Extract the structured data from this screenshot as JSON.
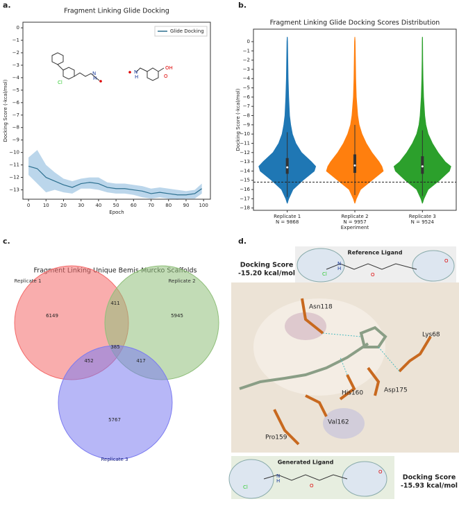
{
  "chart_data": [
    {
      "type": "line",
      "panel": "a.",
      "title": "Fragment Linking Glide Docking",
      "xlabel": "Epoch",
      "ylabel": "Docking Score (-kcal/mol)",
      "x": [
        0,
        5,
        10,
        15,
        20,
        25,
        30,
        35,
        40,
        45,
        50,
        55,
        60,
        65,
        70,
        75,
        80,
        85,
        90,
        95,
        99
      ],
      "series": [
        {
          "name": "Glide Docking",
          "color": "#2c6f8f",
          "band_color": "#9ec5e3",
          "values": [
            -11.1,
            -11.3,
            -12.0,
            -12.3,
            -12.6,
            -12.8,
            -12.5,
            -12.4,
            -12.5,
            -12.8,
            -12.9,
            -12.9,
            -13.0,
            -13.1,
            -13.3,
            -13.2,
            -13.3,
            -13.4,
            -13.4,
            -13.3,
            -12.9
          ],
          "lower": [
            -11.8,
            -12.5,
            -13.2,
            -13.0,
            -13.2,
            -13.3,
            -12.9,
            -12.9,
            -13.0,
            -13.2,
            -13.3,
            -13.3,
            -13.4,
            -13.6,
            -13.7,
            -13.6,
            -13.7,
            -13.8,
            -13.7,
            -13.7,
            -13.3
          ],
          "upper": [
            -10.4,
            -9.8,
            -11.0,
            -11.6,
            -12.1,
            -12.3,
            -12.1,
            -12.0,
            -12.0,
            -12.4,
            -12.5,
            -12.5,
            -12.6,
            -12.7,
            -12.9,
            -12.8,
            -12.9,
            -13.0,
            -13.1,
            -13.0,
            -12.5
          ]
        }
      ],
      "xlim": [
        -3.2,
        103.9
      ],
      "xticks": [
        0,
        10,
        20,
        30,
        40,
        50,
        60,
        70,
        80,
        90,
        100
      ],
      "ylim": [
        -13.75,
        0.45
      ],
      "yticks": [
        0,
        {
          "value": -1,
          "label": "−1"
        },
        {
          "value": -2,
          "label": "−2"
        },
        {
          "value": -3,
          "label": "−3"
        },
        {
          "value": -4,
          "label": "−4"
        },
        {
          "value": -5,
          "label": "−5"
        },
        {
          "value": -6,
          "label": "−6"
        },
        {
          "value": -7,
          "label": "−7"
        },
        {
          "value": -8,
          "label": "−8"
        },
        {
          "value": -9,
          "label": "−9"
        },
        {
          "value": -10,
          "label": "−10"
        },
        {
          "value": -11,
          "label": "−11"
        },
        {
          "value": -12,
          "label": "−12"
        },
        {
          "value": -13,
          "label": "−13"
        }
      ],
      "legend": "upper right",
      "molecule_labels": [
        "Cl",
        "N",
        "H",
        "N",
        "H",
        "O",
        "OH"
      ]
    },
    {
      "type": "violin",
      "panel": "b.",
      "title": "Fragment Linking Glide Docking Scores Distribution",
      "xlabel": "Experiment",
      "ylabel": "Docking Score (-kcal/mol)",
      "categories": [
        "Replicate 1",
        "Replicate 2",
        "Replicate 3"
      ],
      "n_labels": [
        "N = 9868",
        "N = 9957",
        "N = 9524"
      ],
      "kde_y": [
        -17.5,
        -17,
        -16,
        -15,
        -14,
        -13.5,
        -13,
        -12,
        -11,
        -10,
        -9,
        -8,
        -6,
        -4,
        -2,
        0,
        0.5
      ],
      "series": [
        {
          "color": "#1f77b4",
          "density": [
            0,
            0.05,
            0.2,
            0.55,
            0.95,
            1.0,
            0.85,
            0.5,
            0.3,
            0.18,
            0.12,
            0.08,
            0.05,
            0.03,
            0.02,
            0.01,
            0
          ],
          "min": -16.8,
          "q1": -14.3,
          "median": -13.6,
          "q3": -12.6,
          "max": -9.8
        },
        {
          "color": "#ff7f0e",
          "density": [
            0,
            0.05,
            0.2,
            0.6,
            1.0,
            0.95,
            0.85,
            0.6,
            0.4,
            0.25,
            0.15,
            0.1,
            0.05,
            0.03,
            0.02,
            0.01,
            0
          ],
          "min": -16.6,
          "q1": -14.2,
          "median": -13.4,
          "q3": -12.2,
          "max": -9.0
        },
        {
          "color": "#2ca02c",
          "density": [
            0,
            0.05,
            0.2,
            0.6,
            0.95,
            1.0,
            0.8,
            0.55,
            0.35,
            0.2,
            0.12,
            0.08,
            0.04,
            0.02,
            0.01,
            0.005,
            0
          ],
          "min": -16.7,
          "q1": -14.3,
          "median": -13.5,
          "q3": -12.4,
          "max": -9.6
        }
      ],
      "reference_line": -15.2,
      "ylim": [
        -18.25,
        1.35
      ],
      "yticks": [
        0,
        {
          "value": -1,
          "label": "−1"
        },
        {
          "value": -2,
          "label": "−2"
        },
        {
          "value": -3,
          "label": "−3"
        },
        {
          "value": -4,
          "label": "−4"
        },
        {
          "value": -5,
          "label": "−5"
        },
        {
          "value": -6,
          "label": "−6"
        },
        {
          "value": -7,
          "label": "−7"
        },
        {
          "value": -8,
          "label": "−8"
        },
        {
          "value": -9,
          "label": "−9"
        },
        {
          "value": -10,
          "label": "−10"
        },
        {
          "value": -11,
          "label": "−11"
        },
        {
          "value": -12,
          "label": "−12"
        },
        {
          "value": -13,
          "label": "−13"
        },
        {
          "value": -14,
          "label": "−14"
        },
        {
          "value": -15,
          "label": "−15"
        },
        {
          "value": -16,
          "label": "−16"
        },
        {
          "value": -17,
          "label": "−17"
        },
        {
          "value": -18,
          "label": "−18"
        }
      ]
    },
    {
      "type": "venn",
      "panel": "c.",
      "title": "Fragment Linking Unique Bemis-Murcko Scaffolds",
      "sets": [
        {
          "name": "Replicate 1",
          "color": "#f46a6a",
          "label_color": "#333333"
        },
        {
          "name": "Replicate 2",
          "color": "#8fbf7a",
          "label_color": "#333333"
        },
        {
          "name": "Replicate 3",
          "color": "#7c7cf0",
          "label_color": "#1a237e"
        }
      ],
      "regions": [
        {
          "sets": [
            0
          ],
          "value": 6149
        },
        {
          "sets": [
            1
          ],
          "value": 5945
        },
        {
          "sets": [
            2
          ],
          "value": 5767
        },
        {
          "sets": [
            0,
            1
          ],
          "value": 411
        },
        {
          "sets": [
            0,
            2
          ],
          "value": 452
        },
        {
          "sets": [
            1,
            2
          ],
          "value": 417
        },
        {
          "sets": [
            0,
            1,
            2
          ],
          "value": 385
        }
      ]
    }
  ],
  "panel_d": {
    "panel": "d.",
    "reference_title": "Reference Ligand",
    "generated_title": "Generated Ligand",
    "reference_score": [
      "Docking Score",
      "-15.20 kcal/mol"
    ],
    "generated_score": [
      "Docking Score",
      "-15.93 kcal/mol"
    ],
    "residues": [
      "Asn118",
      "Lys68",
      "His160",
      "Asp175",
      "Val162",
      "Pro159"
    ],
    "ligand_atoms": [
      "Cl",
      "N",
      "H",
      "O",
      "O",
      "N",
      "H",
      "O",
      "O"
    ]
  }
}
